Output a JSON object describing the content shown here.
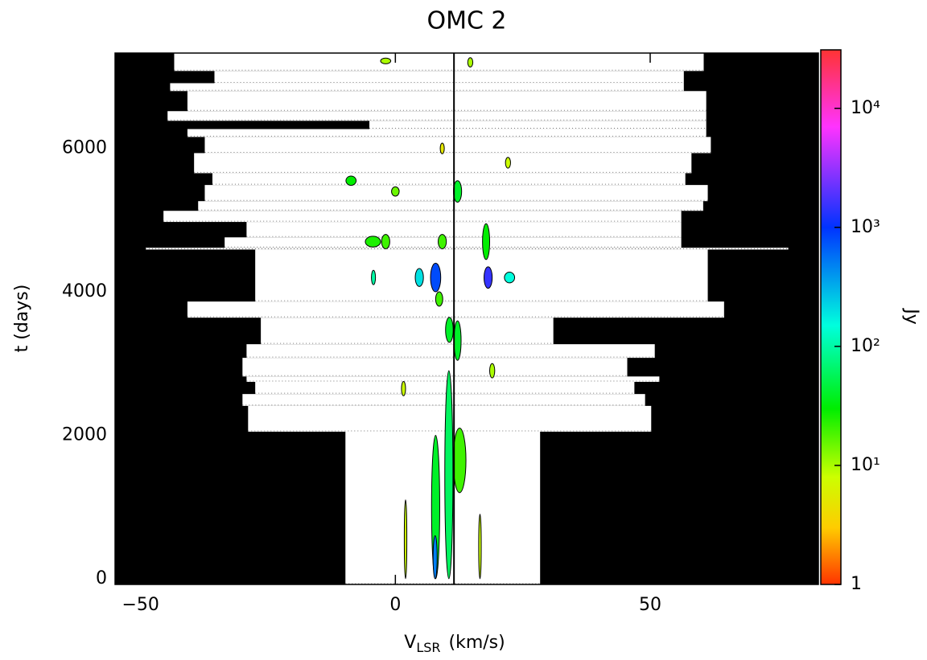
{
  "chart_data": {
    "type": "dynamic-spectrum",
    "title": "OMC 2",
    "xlabel": {
      "main": "V",
      "sub": "LSR",
      "unit": "(km/s)"
    },
    "ylabel": "t (days)",
    "xlim": [
      -55,
      83
    ],
    "ylim": [
      -80,
      7330
    ],
    "xticks": [
      {
        "value": -50,
        "label": "−50"
      },
      0,
      50
    ],
    "yticks": [
      0,
      2000,
      4000,
      6000
    ],
    "reference_velocity": 11.5,
    "coverage": [
      {
        "t": [
          7080,
          7330
        ],
        "v": [
          -43.4,
          60.5
        ]
      },
      {
        "t": [
          6910,
          7080
        ],
        "v": [
          -35.5,
          56.6
        ]
      },
      {
        "t": [
          6800,
          6910
        ],
        "v": [
          -44.2,
          56.6
        ]
      },
      {
        "t": [
          6520,
          6800
        ],
        "v": [
          -40.8,
          61.0
        ]
      },
      {
        "t": [
          6385,
          6520
        ],
        "v": [
          -44.7,
          61.0
        ]
      },
      {
        "t": [
          6270,
          6385
        ],
        "v": [
          -5.1,
          61.0
        ]
      },
      {
        "t": [
          6160,
          6270
        ],
        "v": [
          -40.8,
          61.0
        ]
      },
      {
        "t": [
          5935,
          6160
        ],
        "v": [
          -37.4,
          61.9
        ]
      },
      {
        "t": [
          5655,
          5935
        ],
        "v": [
          -39.5,
          58.1
        ]
      },
      {
        "t": [
          5490,
          5655
        ],
        "v": [
          -35.9,
          56.9
        ]
      },
      {
        "t": [
          5265,
          5490
        ],
        "v": [
          -37.4,
          61.3
        ]
      },
      {
        "t": [
          5130,
          5265
        ],
        "v": [
          -38.7,
          60.4
        ]
      },
      {
        "t": [
          4975,
          5130
        ],
        "v": [
          -45.5,
          56.1
        ]
      },
      {
        "t": [
          4760,
          4975
        ],
        "v": [
          -29.2,
          56.1
        ]
      },
      {
        "t": [
          4615,
          4760
        ],
        "v": [
          -33.5,
          56.1
        ]
      },
      {
        "t": [
          4590,
          4615
        ],
        "v": [
          -49.0,
          77.1
        ]
      },
      {
        "t": [
          3865,
          4590
        ],
        "v": [
          -27.5,
          61.3
        ]
      },
      {
        "t": [
          3640,
          3865
        ],
        "v": [
          -40.8,
          64.5
        ]
      },
      {
        "t": [
          3270,
          3640
        ],
        "v": [
          -26.4,
          31.0
        ]
      },
      {
        "t": [
          3080,
          3270
        ],
        "v": [
          -29.2,
          50.9
        ]
      },
      {
        "t": [
          2820,
          3080
        ],
        "v": [
          -30.0,
          45.5
        ]
      },
      {
        "t": [
          2745,
          2820
        ],
        "v": [
          -29.2,
          51.8
        ]
      },
      {
        "t": [
          2575,
          2745
        ],
        "v": [
          -27.5,
          46.9
        ]
      },
      {
        "t": [
          2410,
          2575
        ],
        "v": [
          -30.0,
          49.0
        ]
      },
      {
        "t": [
          2050,
          2410
        ],
        "v": [
          -28.9,
          50.2
        ]
      },
      {
        "t": [
          -80,
          2050
        ],
        "v": [
          -9.8,
          28.4
        ]
      }
    ],
    "features": [
      {
        "v": 10.5,
        "t": 1450,
        "dv": 1.6,
        "dt": 2900,
        "peak": 60
      },
      {
        "v": 7.9,
        "t": 1000,
        "dv": 1.6,
        "dt": 2000,
        "peak": 40
      },
      {
        "v": 7.8,
        "t": 300,
        "dv": 0.8,
        "dt": 600,
        "peak": 500
      },
      {
        "v": 12.6,
        "t": 1650,
        "dv": 2.5,
        "dt": 900,
        "peak": 20
      },
      {
        "v": 2.0,
        "t": 550,
        "dv": 0.5,
        "dt": 1100,
        "peak": 8
      },
      {
        "v": 16.6,
        "t": 450,
        "dv": 0.5,
        "dt": 900,
        "peak": 8
      },
      {
        "v": 10.6,
        "t": 3470,
        "dv": 1.5,
        "dt": 350,
        "peak": 40
      },
      {
        "v": 12.2,
        "t": 3320,
        "dv": 1.4,
        "dt": 550,
        "peak": 40
      },
      {
        "v": 7.9,
        "t": 4200,
        "dv": 2.0,
        "dt": 400,
        "peak": 800
      },
      {
        "v": 4.7,
        "t": 4200,
        "dv": 1.6,
        "dt": 250,
        "peak": 200
      },
      {
        "v": 18.2,
        "t": 4200,
        "dv": 1.6,
        "dt": 300,
        "peak": 1500
      },
      {
        "v": 22.4,
        "t": 4200,
        "dv": 2.0,
        "dt": 150,
        "peak": 150
      },
      {
        "v": 17.8,
        "t": 4700,
        "dv": 1.4,
        "dt": 500,
        "peak": 30
      },
      {
        "v": -4.4,
        "t": 4700,
        "dv": 3.0,
        "dt": 150,
        "peak": 25
      },
      {
        "v": -1.9,
        "t": 4700,
        "dv": 1.6,
        "dt": 200,
        "peak": 20
      },
      {
        "v": 9.2,
        "t": 4700,
        "dv": 1.6,
        "dt": 200,
        "peak": 20
      },
      {
        "v": -8.7,
        "t": 5550,
        "dv": 2.0,
        "dt": 130,
        "peak": 30
      },
      {
        "v": 0.0,
        "t": 5400,
        "dv": 1.5,
        "dt": 130,
        "peak": 15
      },
      {
        "v": 12.2,
        "t": 5400,
        "dv": 1.6,
        "dt": 300,
        "peak": 40
      },
      {
        "v": 9.2,
        "t": 6000,
        "dv": 0.8,
        "dt": 150,
        "peak": 5
      },
      {
        "v": -1.9,
        "t": 7220,
        "dv": 2.0,
        "dt": 80,
        "peak": 10
      },
      {
        "v": 14.7,
        "t": 7200,
        "dv": 1.0,
        "dt": 130,
        "peak": 10
      },
      {
        "v": -4.3,
        "t": 4200,
        "dv": 0.8,
        "dt": 200,
        "peak": 100
      },
      {
        "v": 1.6,
        "t": 2650,
        "dv": 0.8,
        "dt": 200,
        "peak": 8
      },
      {
        "v": 19.0,
        "t": 2900,
        "dv": 1.0,
        "dt": 200,
        "peak": 10
      },
      {
        "v": 22.1,
        "t": 5800,
        "dv": 1.0,
        "dt": 150,
        "peak": 8
      },
      {
        "v": 8.6,
        "t": 3900,
        "dv": 1.4,
        "dt": 200,
        "peak": 20
      }
    ],
    "colorbar": {
      "label": "Jy",
      "lim": [
        1,
        31000
      ],
      "log": true,
      "ticks": [
        1,
        {
          "value": 10,
          "label": "10¹"
        },
        {
          "value": 100,
          "label": "10²"
        },
        {
          "value": 1000,
          "label": "10³"
        },
        {
          "value": 10000,
          "label": "10⁴"
        }
      ],
      "stops": [
        [
          1,
          "#ff3300"
        ],
        [
          3,
          "#ffcc00"
        ],
        [
          8,
          "#ccff00"
        ],
        [
          30,
          "#00ee00"
        ],
        [
          150,
          "#00ffdd"
        ],
        [
          1000,
          "#0033ff"
        ],
        [
          7000,
          "#ff33ff"
        ],
        [
          31000,
          "#ff3333"
        ]
      ]
    }
  }
}
